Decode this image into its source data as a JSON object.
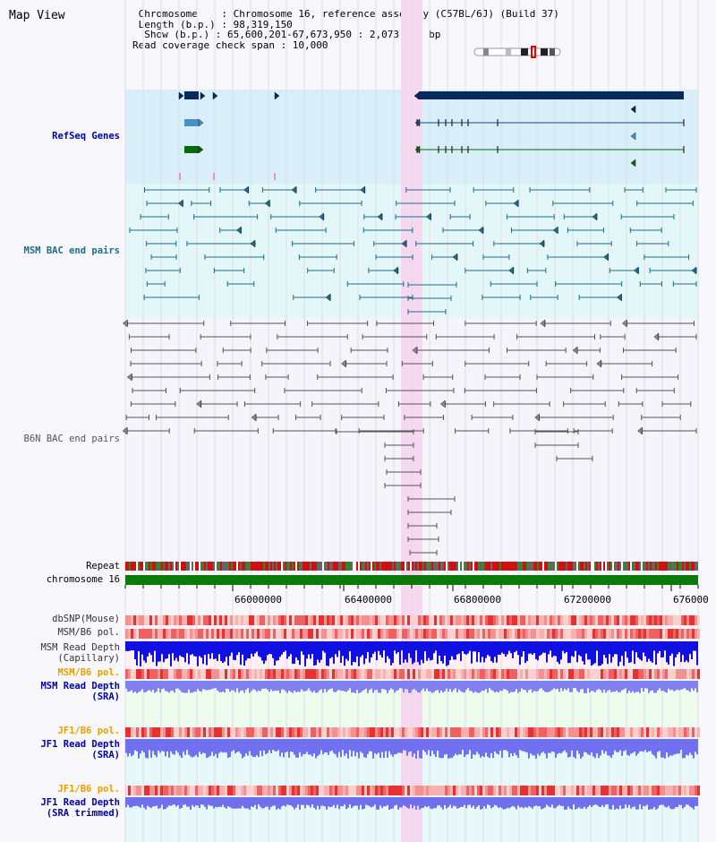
{
  "title": "Map View",
  "header": {
    "line1": " Chromosome    : Chromosome 16, reference assembly (C57BL/6J) (Build 37)",
    "line2": " Length (b.p.) : 98,319,150",
    "line3": "  Show (b.p.) : 65,600,201-67,673,950 : 2,073,750 bp",
    "line4": "Read coverage check span : 10,000"
  },
  "tracks": {
    "refseq": "RefSeq Genes",
    "msm_bac": "MSM BAC end pairs",
    "b6n_bac": "B6N BAC end pairs",
    "repeat": "Repeat",
    "chromosome": "chromosome 16",
    "dbsnp": "dbSNP(Mouse)",
    "msm_b6_pol": "MSM/B6 pol.",
    "msm_read_depth_cap_1": "MSM Read Depth",
    "msm_read_depth_cap_2": "(Capillary)",
    "msm_b6_pol_2": "MSM/B6 pol.",
    "msm_read_depth_sra_1": "MSM Read Depth",
    "msm_read_depth_sra_2": "(SRA)",
    "jf1_b6_pol": "JF1/B6 pol.",
    "jf1_read_depth_sra_1": "JF1 Read Depth",
    "jf1_read_depth_sra_2": "(SRA)",
    "jf1_b6_pol_2": "JF1/B6 pol.",
    "jf1_read_depth_trim_1": "JF1 Read Depth",
    "jf1_read_depth_trim_2": "(SRA trimmed)"
  },
  "axis": {
    "ticks": [
      "66000000",
      "66400000",
      "66800000",
      "67200000",
      "676000"
    ]
  },
  "colors": {
    "refseq_bg": "#d8eef8",
    "msm_bg": "#e4f7f8",
    "highlight": "#f6d8f0",
    "gene_navy": "#0a2a5e",
    "msm_teal": "#1d6e86",
    "b6n_gray": "#555555",
    "chrom_green": "#0a7a0a",
    "depth_blue": "#1010e0",
    "label_navy": "#0000aa",
    "label_teal": "#1d6e86",
    "label_orange": "#e8a000"
  }
}
